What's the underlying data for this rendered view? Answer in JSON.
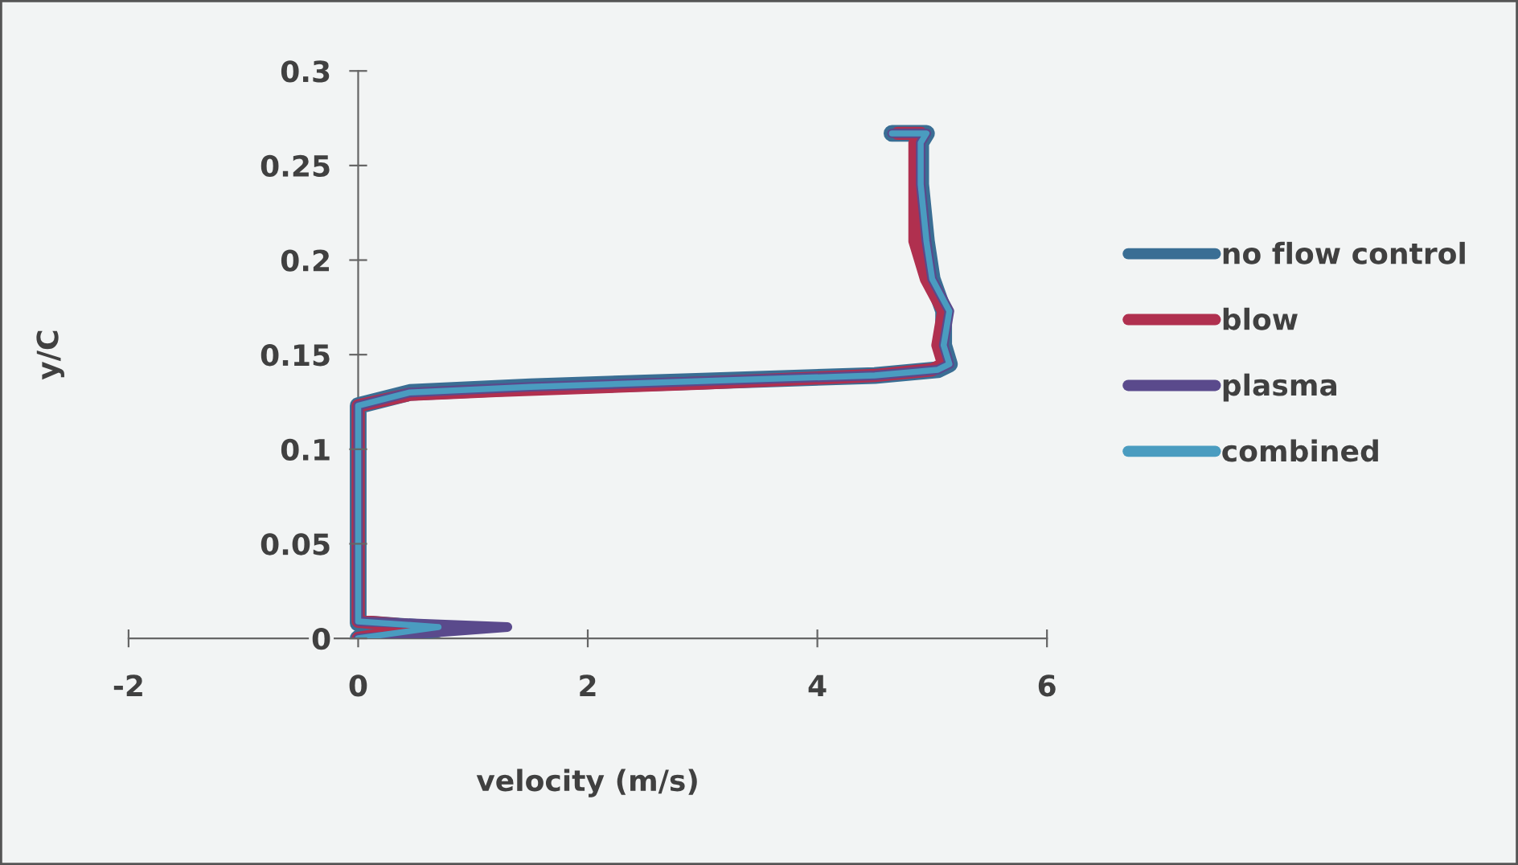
{
  "chart_data": {
    "type": "line",
    "xlabel": "velocity (m/s)",
    "ylabel": "y/C",
    "xlim": [
      -2,
      6
    ],
    "ylim": [
      0,
      0.3
    ],
    "xticks": [
      -2,
      0,
      2,
      4,
      6
    ],
    "yticks": [
      0,
      0.05,
      0.1,
      0.15,
      0.2,
      0.25,
      0.3
    ],
    "grid": false,
    "legend": "right",
    "marker": "none",
    "line_style": "solid",
    "series": [
      {
        "name": "no flow control",
        "color": "#3a6e94",
        "x": [
          0,
          0.7,
          0,
          0,
          0.45,
          1.5,
          3,
          4.5,
          5.05,
          5.15,
          5.1,
          5.1,
          5.0,
          4.95,
          4.9,
          4.9,
          4.95,
          4.65
        ],
        "values": [
          0,
          0.005,
          0.008,
          0.123,
          0.13,
          0.133,
          0.136,
          0.139,
          0.142,
          0.145,
          0.155,
          0.173,
          0.19,
          0.21,
          0.24,
          0.262,
          0.267,
          0.267
        ]
      },
      {
        "name": "blow",
        "color": "#b0304f",
        "x": [
          0,
          0.6,
          0,
          0,
          0.45,
          1.2,
          3,
          4.5,
          5.0,
          5.1,
          5.05,
          5.1,
          4.95,
          4.85,
          4.85,
          4.85,
          4.9,
          4.7
        ],
        "values": [
          0,
          0.006,
          0.009,
          0.123,
          0.129,
          0.131,
          0.135,
          0.139,
          0.142,
          0.145,
          0.155,
          0.173,
          0.19,
          0.21,
          0.24,
          0.262,
          0.267,
          0.267
        ]
      },
      {
        "name": "plasma",
        "color": "#5a4a8c",
        "x": [
          0,
          1.3,
          0,
          0,
          0.45,
          1.5,
          3,
          4.5,
          5.05,
          5.15,
          5.1,
          5.15,
          5.0,
          4.95,
          4.9,
          4.9,
          4.95,
          4.65
        ],
        "values": [
          0,
          0.006,
          0.009,
          0.123,
          0.13,
          0.133,
          0.136,
          0.139,
          0.142,
          0.145,
          0.155,
          0.173,
          0.19,
          0.21,
          0.24,
          0.262,
          0.267,
          0.267
        ]
      },
      {
        "name": "combined",
        "color": "#4a9cc0",
        "x": [
          0,
          0.7,
          0,
          0,
          0.45,
          1.5,
          3,
          4.5,
          5.05,
          5.15,
          5.1,
          5.15,
          5.0,
          4.95,
          4.9,
          4.9,
          4.95,
          4.65
        ],
        "values": [
          0,
          0.006,
          0.009,
          0.123,
          0.13,
          0.133,
          0.136,
          0.139,
          0.142,
          0.145,
          0.155,
          0.173,
          0.19,
          0.21,
          0.24,
          0.262,
          0.267,
          0.267
        ]
      }
    ]
  }
}
